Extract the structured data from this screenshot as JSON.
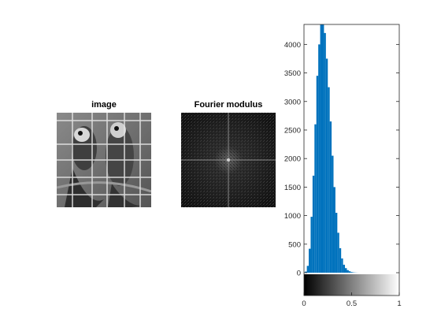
{
  "panels": {
    "image_title": "image",
    "fourier_title": "Fourier modulus"
  },
  "colors": {
    "bar": "#0072BD",
    "axis": "#262626",
    "background": "#ffffff"
  },
  "chart_data": {
    "type": "bar",
    "title": "",
    "xlabel": "",
    "ylabel": "",
    "xlim": [
      0,
      1
    ],
    "ylim": [
      -400,
      4350
    ],
    "y_ticks": [
      0,
      500,
      1000,
      1500,
      2000,
      2500,
      3000,
      3500,
      4000
    ],
    "y_tick_labels": [
      "0",
      "500",
      "1000",
      "1500",
      "2000",
      "2500",
      "3000",
      "3500",
      "4000"
    ],
    "x_ticks": [
      0,
      0.5,
      1
    ],
    "x_tick_labels": [
      "0",
      "0.5",
      "1"
    ],
    "colorbar": "grayscale 0 to 1 along x-axis",
    "series": [
      {
        "x": [
          0.02,
          0.04,
          0.06,
          0.08,
          0.1,
          0.12,
          0.14,
          0.16,
          0.18,
          0.2,
          0.22,
          0.24,
          0.26,
          0.28,
          0.3,
          0.32,
          0.34,
          0.36,
          0.38,
          0.4,
          0.42,
          0.44,
          0.46,
          0.48,
          0.5,
          0.52,
          0.54,
          0.56
        ],
        "values": [
          20,
          120,
          420,
          980,
          1700,
          2600,
          3450,
          4000,
          4350,
          4350,
          4200,
          3750,
          3250,
          2650,
          2050,
          1500,
          1050,
          700,
          430,
          250,
          140,
          80,
          45,
          25,
          12,
          6,
          3,
          1
        ]
      }
    ]
  }
}
